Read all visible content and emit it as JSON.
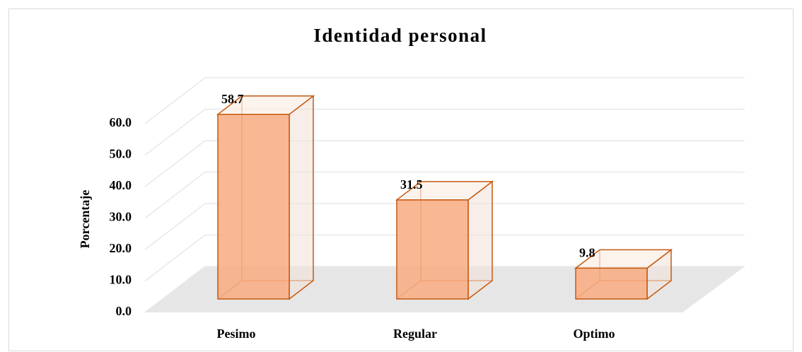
{
  "chart_data": {
    "type": "bar3d",
    "title": "Identidad personal",
    "y_label": "Porcentaje",
    "categories": [
      "Pesimo",
      "Regular",
      "Optimo"
    ],
    "values": [
      58.7,
      31.5,
      9.8
    ],
    "color": "#f8ad84",
    "ylim": [
      0,
      60
    ],
    "yticks": [
      {
        "value": 0,
        "label": "0.0"
      },
      {
        "value": 10,
        "label": "10.0"
      },
      {
        "value": 20,
        "label": "20.0"
      },
      {
        "value": 30,
        "label": "30.0"
      },
      {
        "value": 40,
        "label": "40.0"
      },
      {
        "value": 50,
        "label": "50.0"
      },
      {
        "value": 60,
        "label": "60.0"
      }
    ],
    "grid": true
  }
}
